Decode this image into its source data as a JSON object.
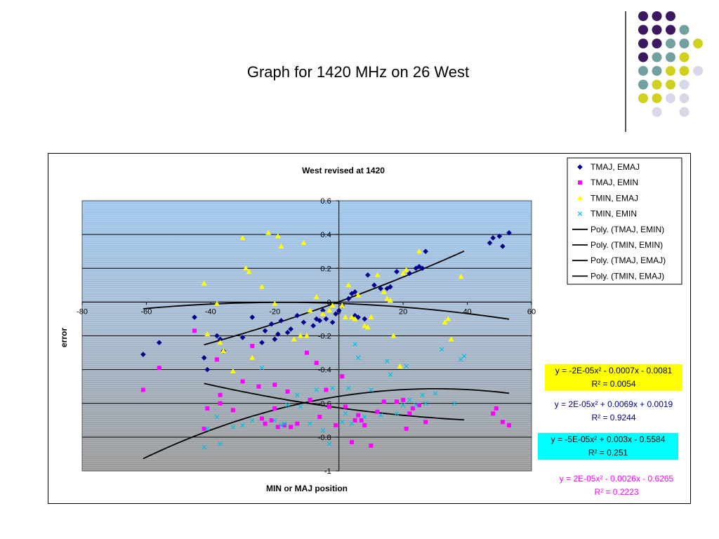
{
  "slide": {
    "title": "Graph for 1420 MHz on 26 West",
    "deco_colors": [
      "#3b1860",
      "#72a0a0",
      "#d0d020",
      "#d8d8ea"
    ]
  },
  "chart_data": {
    "type": "scatter",
    "title": "West revised  at 1420",
    "xlabel": "MIN or MAJ position",
    "ylabel": "error",
    "xlim": [
      -80,
      60
    ],
    "ylim": [
      -1,
      0.6
    ],
    "xticks": [
      -80,
      -60,
      -40,
      -20,
      0,
      20,
      40,
      60
    ],
    "yticks": [
      -1,
      -0.8,
      -0.6,
      -0.4,
      -0.2,
      0,
      0.2,
      0.4,
      0.6
    ],
    "grid": true,
    "legend_position": "top-right",
    "series": [
      {
        "name": "TMAJ, EMAJ",
        "marker": "diamond",
        "color": "#00008b",
        "points": [
          [
            -61,
            -0.31
          ],
          [
            -56,
            -0.24
          ],
          [
            -45,
            -0.09
          ],
          [
            -42,
            -0.33
          ],
          [
            -41,
            -0.4
          ],
          [
            -38,
            -0.2
          ],
          [
            -37,
            -0.22
          ],
          [
            -36,
            -0.29
          ],
          [
            -30,
            -0.21
          ],
          [
            -27,
            -0.09
          ],
          [
            -24,
            -0.24
          ],
          [
            -23,
            -0.17
          ],
          [
            -21,
            -0.13
          ],
          [
            -20,
            -0.22
          ],
          [
            -19,
            -0.19
          ],
          [
            -18,
            -0.11
          ],
          [
            -16,
            -0.18
          ],
          [
            -15,
            -0.16
          ],
          [
            -13,
            -0.08
          ],
          [
            -11,
            -0.12
          ],
          [
            -8,
            -0.14
          ],
          [
            -7,
            -0.1
          ],
          [
            -6,
            -0.11
          ],
          [
            -5,
            -0.05
          ],
          [
            -4,
            -0.1
          ],
          [
            -2,
            -0.12
          ],
          [
            -1,
            -0.07
          ],
          [
            0,
            -0.05
          ],
          [
            1,
            -0.02
          ],
          [
            3,
            0.02
          ],
          [
            4,
            0.05
          ],
          [
            5,
            -0.08
          ],
          [
            5,
            0.06
          ],
          [
            6,
            -0.09
          ],
          [
            8,
            -0.1
          ],
          [
            9,
            0.16
          ],
          [
            11,
            0.1
          ],
          [
            13,
            0.08
          ],
          [
            15,
            0.08
          ],
          [
            16,
            0.09
          ],
          [
            18,
            0.18
          ],
          [
            22,
            0.17
          ],
          [
            24,
            0.2
          ],
          [
            25,
            0.21
          ],
          [
            26,
            0.2
          ],
          [
            27,
            0.3
          ],
          [
            47,
            0.35
          ],
          [
            48,
            0.38
          ],
          [
            50,
            0.39
          ],
          [
            51,
            0.33
          ],
          [
            53,
            0.41
          ]
        ]
      },
      {
        "name": "TMAJ, EMIN",
        "marker": "square",
        "color": "#ff00ff",
        "points": [
          [
            -61,
            -0.52
          ],
          [
            -56,
            -0.39
          ],
          [
            -45,
            -0.17
          ],
          [
            -42,
            -0.75
          ],
          [
            -41,
            -0.63
          ],
          [
            -38,
            -0.34
          ],
          [
            -37,
            -0.55
          ],
          [
            -37,
            -0.6
          ],
          [
            -33,
            -0.64
          ],
          [
            -30,
            -0.47
          ],
          [
            -27,
            -0.26
          ],
          [
            -25,
            -0.5
          ],
          [
            -24,
            -0.69
          ],
          [
            -23,
            -0.72
          ],
          [
            -21,
            -0.7
          ],
          [
            -20,
            -0.49
          ],
          [
            -20,
            -0.63
          ],
          [
            -19,
            -0.74
          ],
          [
            -17,
            -0.73
          ],
          [
            -16,
            -0.53
          ],
          [
            -15,
            -0.74
          ],
          [
            -13,
            -0.72
          ],
          [
            -10,
            -0.3
          ],
          [
            -9,
            -0.58
          ],
          [
            -7,
            -0.36
          ],
          [
            -6,
            -0.68
          ],
          [
            -4,
            -0.52
          ],
          [
            -3,
            -0.62
          ],
          [
            -1,
            -0.73
          ],
          [
            1,
            -0.44
          ],
          [
            2,
            -0.62
          ],
          [
            4,
            -0.83
          ],
          [
            5,
            -0.7
          ],
          [
            6,
            -0.67
          ],
          [
            7,
            -0.7
          ],
          [
            8,
            -0.73
          ],
          [
            10,
            -0.85
          ],
          [
            12,
            -0.65
          ],
          [
            14,
            -0.59
          ],
          [
            18,
            -0.59
          ],
          [
            20,
            -0.58
          ],
          [
            21,
            -0.75
          ],
          [
            22,
            -0.66
          ],
          [
            23,
            -0.63
          ],
          [
            25,
            -0.61
          ],
          [
            27,
            -0.71
          ],
          [
            48,
            -0.66
          ],
          [
            49,
            -0.63
          ],
          [
            51,
            -0.71
          ],
          [
            53,
            -0.73
          ]
        ]
      },
      {
        "name": "TMIN, EMAJ",
        "marker": "triangle",
        "color": "#ffff00",
        "points": [
          [
            -42,
            0.11
          ],
          [
            -41,
            -0.19
          ],
          [
            -38,
            -0.01
          ],
          [
            -37,
            -0.24
          ],
          [
            -36,
            -0.29
          ],
          [
            -33,
            -0.41
          ],
          [
            -30,
            0.38
          ],
          [
            -29,
            0.2
          ],
          [
            -28,
            0.18
          ],
          [
            -27,
            -0.33
          ],
          [
            -24,
            0.09
          ],
          [
            -22,
            0.41
          ],
          [
            -20,
            -0.01
          ],
          [
            -19,
            0.39
          ],
          [
            -18,
            0.33
          ],
          [
            -14,
            -0.22
          ],
          [
            -12,
            -0.2
          ],
          [
            -11,
            0.35
          ],
          [
            -10,
            -0.2
          ],
          [
            -9,
            -0.05
          ],
          [
            -7,
            0.03
          ],
          [
            -5,
            -0.07
          ],
          [
            -3,
            -0.05
          ],
          [
            -2,
            -0.02
          ],
          [
            1,
            -0.02
          ],
          [
            2,
            -0.09
          ],
          [
            3,
            0.1
          ],
          [
            4,
            -0.09
          ],
          [
            5,
            -0.1
          ],
          [
            6,
            0.04
          ],
          [
            8,
            -0.14
          ],
          [
            9,
            -0.15
          ],
          [
            10,
            -0.09
          ],
          [
            12,
            0.16
          ],
          [
            14,
            0.06
          ],
          [
            15,
            0.02
          ],
          [
            16,
            0.01
          ],
          [
            17,
            -0.2
          ],
          [
            19,
            -0.38
          ],
          [
            20,
            0.17
          ],
          [
            21,
            0.19
          ],
          [
            25,
            0.3
          ],
          [
            33,
            -0.12
          ],
          [
            34,
            -0.1
          ],
          [
            35,
            -0.22
          ],
          [
            38,
            0.15
          ]
        ]
      },
      {
        "name": "TMIN, EMIN",
        "marker": "x",
        "color": "#00c0e0",
        "points": [
          [
            -42,
            -0.86
          ],
          [
            -41,
            -0.75
          ],
          [
            -38,
            -0.68
          ],
          [
            -37,
            -0.84
          ],
          [
            -33,
            -0.74
          ],
          [
            -30,
            -0.73
          ],
          [
            -27,
            -0.7
          ],
          [
            -24,
            -0.39
          ],
          [
            -20,
            -0.7
          ],
          [
            -18,
            -0.73
          ],
          [
            -17,
            -0.72
          ],
          [
            -16,
            -0.61
          ],
          [
            -13,
            -0.55
          ],
          [
            -12,
            -0.62
          ],
          [
            -9,
            -0.72
          ],
          [
            -7,
            -0.52
          ],
          [
            -5,
            -0.76
          ],
          [
            -3,
            -0.84
          ],
          [
            -2,
            -0.51
          ],
          [
            1,
            -0.71
          ],
          [
            2,
            -0.66
          ],
          [
            3,
            -0.51
          ],
          [
            4,
            -0.72
          ],
          [
            5,
            -0.25
          ],
          [
            6,
            -0.33
          ],
          [
            8,
            -0.68
          ],
          [
            10,
            -0.52
          ],
          [
            13,
            -0.67
          ],
          [
            15,
            -0.35
          ],
          [
            16,
            -0.43
          ],
          [
            18,
            -0.66
          ],
          [
            20,
            -0.61
          ],
          [
            21,
            -0.38
          ],
          [
            22,
            -0.58
          ],
          [
            24,
            -0.61
          ],
          [
            26,
            -0.55
          ],
          [
            27,
            -0.6
          ],
          [
            30,
            -0.54
          ],
          [
            32,
            -0.28
          ],
          [
            36,
            -0.6
          ],
          [
            38,
            -0.34
          ],
          [
            39,
            -0.32
          ]
        ]
      }
    ],
    "trendlines": [
      {
        "name": "Poly. (TMAJ, EMIN)",
        "series": "TMAJ, EMIN",
        "coef": [
          -2e-05,
          -0.0007,
          -0.0081
        ],
        "x_range": [
          -61,
          53
        ],
        "equation": "y = -2E-05x² - 0.0007x - 0.0081",
        "r2": "R² = 0.0054",
        "box_color": "#ffff00",
        "text_color": "#000000"
      },
      {
        "name": "Poly. (TMIN, EMIN)",
        "series": "TMIN, EMIN",
        "coef": [
          2e-05,
          0.0069,
          0.0019
        ],
        "x_range": [
          -42,
          39
        ],
        "equation": "y = 2E-05x² + 0.0069x + 0.0019",
        "r2": "R² = 0.9244",
        "box_color": "#ffffff",
        "text_color": "#000080"
      },
      {
        "name": "Poly. (TMAJ, EMAJ)",
        "series": "TMAJ, EMAJ",
        "coef": [
          -5e-05,
          0.003,
          -0.5584
        ],
        "x_range": [
          -61,
          53
        ],
        "equation": "y = -5E-05x² + 0.003x - 0.5584",
        "r2": "R² = 0.251",
        "box_color": "#00ffff",
        "text_color": "#000000"
      },
      {
        "name": "Poly. (TMIN, EMAJ)",
        "series": "TMIN, EMAJ",
        "coef": [
          2e-05,
          -0.0026,
          -0.6265
        ],
        "x_range": [
          -42,
          39
        ],
        "equation": "y = 2E-05x² - 0.0026x - 0.6265",
        "r2": "R² = 0.2223",
        "box_color": "#ffffff",
        "text_color": "#ff00ff"
      }
    ]
  }
}
